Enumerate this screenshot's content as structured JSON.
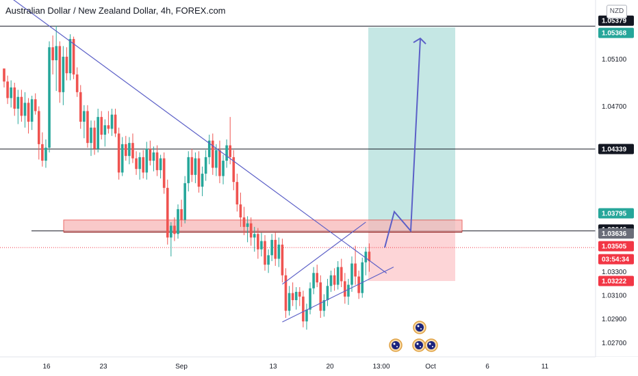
{
  "title": "Australian Dollar / New Zealand Dollar, 4h, FOREX.com",
  "currency_badge": "NZD",
  "colors": {
    "up": "#26a69a",
    "down": "#ef5350",
    "trendline": "#5b5fc7",
    "target_zone": "#b2dfdb",
    "stop_zone": "#fccbcd",
    "resistance_zone": "#f8b8b8",
    "black": "#131722",
    "current_price": "#f23645"
  },
  "chart_data": {
    "type": "candlestick",
    "symbol": "AUDNZD",
    "timeframe": "4h",
    "ylim": [
      1.0258,
      1.056
    ],
    "x_ticks": [
      "16",
      "23",
      "Sep",
      "13",
      "20",
      "13:00",
      "Oct",
      "6",
      "11"
    ],
    "y_ticks": [
      "1.05100",
      "1.04700",
      "1.03300",
      "1.03100",
      "1.02900",
      "1.02700"
    ],
    "price_tags": [
      {
        "label": "1.05379",
        "value": 1.05379,
        "style": "black"
      },
      {
        "label": "1.05368",
        "value": 1.05368,
        "style": "green"
      },
      {
        "label": "1.04339",
        "value": 1.04339,
        "style": "black"
      },
      {
        "label": "1.03795",
        "value": 1.03795,
        "style": "green"
      },
      {
        "label": "1.03646",
        "value": 1.03646,
        "style": "black"
      },
      {
        "label": "1.03636",
        "value": 1.03636,
        "style": "gray"
      },
      {
        "label": "1.03505",
        "value": 1.03505,
        "style": "red"
      },
      {
        "label": "03:54:34",
        "value": null,
        "style": "red"
      },
      {
        "label": "1.03222",
        "value": 1.03222,
        "style": "red"
      }
    ],
    "horizontal_levels": [
      1.05379,
      1.04339,
      1.03646
    ],
    "resistance_zone": [
      1.03636,
      1.03738
    ],
    "current_price": 1.03505,
    "target_zone": [
      1.03636,
      1.05368
    ],
    "stop_zone": [
      1.03222,
      1.03636
    ],
    "candles": [
      [
        1.0502,
        1.0502,
        1.0486,
        1.0491
      ],
      [
        1.0491,
        1.0496,
        1.0472,
        1.0477
      ],
      [
        1.0477,
        1.0492,
        1.0469,
        1.0486
      ],
      [
        1.0486,
        1.049,
        1.0462,
        1.0468
      ],
      [
        1.0468,
        1.0484,
        1.0455,
        1.0478
      ],
      [
        1.0478,
        1.0484,
        1.0457,
        1.0462
      ],
      [
        1.0462,
        1.0482,
        1.0452,
        1.0473
      ],
      [
        1.0473,
        1.0477,
        1.0447,
        1.0457
      ],
      [
        1.0457,
        1.0479,
        1.045,
        1.0476
      ],
      [
        1.0476,
        1.0481,
        1.0463,
        1.0466
      ],
      [
        1.0466,
        1.047,
        1.0425,
        1.0438
      ],
      [
        1.0438,
        1.0448,
        1.0419,
        1.0424
      ],
      [
        1.0424,
        1.0442,
        1.0418,
        1.0435
      ],
      [
        1.0435,
        1.0525,
        1.0431,
        1.052
      ],
      [
        1.052,
        1.053,
        1.0497,
        1.0509
      ],
      [
        1.0509,
        1.0538,
        1.0483,
        1.0521
      ],
      [
        1.0521,
        1.0525,
        1.0473,
        1.0482
      ],
      [
        1.0482,
        1.0521,
        1.0471,
        1.0512
      ],
      [
        1.0512,
        1.052,
        1.0492,
        1.0498
      ],
      [
        1.0498,
        1.0531,
        1.0492,
        1.0527
      ],
      [
        1.0527,
        1.0529,
        1.0493,
        1.0497
      ],
      [
        1.0497,
        1.0503,
        1.0478,
        1.0482
      ],
      [
        1.0482,
        1.0488,
        1.0451,
        1.0457
      ],
      [
        1.0457,
        1.0471,
        1.0443,
        1.0466
      ],
      [
        1.0466,
        1.0471,
        1.0435,
        1.0439
      ],
      [
        1.0439,
        1.0458,
        1.0428,
        1.0452
      ],
      [
        1.0452,
        1.0458,
        1.0429,
        1.0434
      ],
      [
        1.0434,
        1.0468,
        1.0431,
        1.0461
      ],
      [
        1.0461,
        1.0466,
        1.0442,
        1.0446
      ],
      [
        1.0446,
        1.0459,
        1.0436,
        1.0454
      ],
      [
        1.0454,
        1.0466,
        1.0447,
        1.0451
      ],
      [
        1.0451,
        1.0468,
        1.0445,
        1.0463
      ],
      [
        1.0463,
        1.0468,
        1.0444,
        1.0447
      ],
      [
        1.0447,
        1.0452,
        1.0408,
        1.0414
      ],
      [
        1.0414,
        1.0444,
        1.0411,
        1.0438
      ],
      [
        1.0438,
        1.0445,
        1.0424,
        1.0428
      ],
      [
        1.0428,
        1.0444,
        1.0421,
        1.0439
      ],
      [
        1.0439,
        1.0447,
        1.0422,
        1.0426
      ],
      [
        1.0426,
        1.0432,
        1.0412,
        1.0417
      ],
      [
        1.0417,
        1.0431,
        1.0408,
        1.0427
      ],
      [
        1.0427,
        1.0433,
        1.0409,
        1.0414
      ],
      [
        1.0414,
        1.044,
        1.0408,
        1.0434
      ],
      [
        1.0434,
        1.0441,
        1.042,
        1.0424
      ],
      [
        1.0424,
        1.0436,
        1.0415,
        1.0431
      ],
      [
        1.0431,
        1.0437,
        1.0411,
        1.0416
      ],
      [
        1.0416,
        1.0429,
        1.0409,
        1.0426
      ],
      [
        1.0426,
        1.0431,
        1.0396,
        1.0401
      ],
      [
        1.0401,
        1.0408,
        1.0353,
        1.0359
      ],
      [
        1.0359,
        1.0372,
        1.0343,
        1.0369
      ],
      [
        1.0369,
        1.0376,
        1.0356,
        1.0362
      ],
      [
        1.0362,
        1.0387,
        1.0358,
        1.0383
      ],
      [
        1.0383,
        1.0391,
        1.0368,
        1.0374
      ],
      [
        1.0374,
        1.0411,
        1.0371,
        1.0405
      ],
      [
        1.0405,
        1.0432,
        1.0398,
        1.0427
      ],
      [
        1.0427,
        1.0434,
        1.0406,
        1.0412
      ],
      [
        1.0412,
        1.0431,
        1.0405,
        1.0426
      ],
      [
        1.0426,
        1.0432,
        1.0397,
        1.0402
      ],
      [
        1.0402,
        1.0419,
        1.0394,
        1.0413
      ],
      [
        1.0413,
        1.0433,
        1.0407,
        1.0427
      ],
      [
        1.0427,
        1.0446,
        1.0421,
        1.0441
      ],
      [
        1.0441,
        1.0447,
        1.0412,
        1.0418
      ],
      [
        1.0418,
        1.0438,
        1.0411,
        1.0433
      ],
      [
        1.0433,
        1.0441,
        1.0405,
        1.0411
      ],
      [
        1.0411,
        1.0429,
        1.0404,
        1.0424
      ],
      [
        1.0424,
        1.0442,
        1.0418,
        1.0437
      ],
      [
        1.0437,
        1.0461,
        1.0421,
        1.0427
      ],
      [
        1.0427,
        1.0433,
        1.0399,
        1.0406
      ],
      [
        1.0406,
        1.0413,
        1.0381,
        1.0387
      ],
      [
        1.0387,
        1.0397,
        1.0368,
        1.0376
      ],
      [
        1.0376,
        1.0385,
        1.0361,
        1.0368
      ],
      [
        1.0368,
        1.0377,
        1.0355,
        1.0371
      ],
      [
        1.0371,
        1.0376,
        1.0352,
        1.0359
      ],
      [
        1.0359,
        1.0368,
        1.0347,
        1.0362
      ],
      [
        1.0362,
        1.0367,
        1.0341,
        1.0349
      ],
      [
        1.0349,
        1.0363,
        1.0343,
        1.0356
      ],
      [
        1.0356,
        1.0361,
        1.0331,
        1.0336
      ],
      [
        1.0336,
        1.0349,
        1.0329,
        1.0344
      ],
      [
        1.0344,
        1.0362,
        1.0339,
        1.0357
      ],
      [
        1.0357,
        1.0363,
        1.0335,
        1.0341
      ],
      [
        1.0341,
        1.0359,
        1.0334,
        1.0353
      ],
      [
        1.0353,
        1.0358,
        1.0321,
        1.0327
      ],
      [
        1.0327,
        1.0333,
        1.0291,
        1.0297
      ],
      [
        1.0297,
        1.0318,
        1.0293,
        1.0312
      ],
      [
        1.0312,
        1.0321,
        1.0301,
        1.0306
      ],
      [
        1.0306,
        1.0317,
        1.0298,
        1.0313
      ],
      [
        1.0313,
        1.0317,
        1.0301,
        1.0309
      ],
      [
        1.0309,
        1.0314,
        1.0283,
        1.0288
      ],
      [
        1.0288,
        1.0303,
        1.0281,
        1.0298
      ],
      [
        1.0298,
        1.0321,
        1.0294,
        1.0316
      ],
      [
        1.0316,
        1.0334,
        1.0311,
        1.0329
      ],
      [
        1.0329,
        1.0336,
        1.0317,
        1.0321
      ],
      [
        1.0321,
        1.0327,
        1.0291,
        1.0297
      ],
      [
        1.0297,
        1.0311,
        1.0292,
        1.0306
      ],
      [
        1.0306,
        1.0324,
        1.0301,
        1.0318
      ],
      [
        1.0318,
        1.0331,
        1.0313,
        1.0327
      ],
      [
        1.0327,
        1.0333,
        1.0314,
        1.0319
      ],
      [
        1.0319,
        1.0339,
        1.0315,
        1.0334
      ],
      [
        1.0334,
        1.0341,
        1.0317,
        1.0322
      ],
      [
        1.0322,
        1.0329,
        1.0303,
        1.0309
      ],
      [
        1.0309,
        1.0324,
        1.0302,
        1.0319
      ],
      [
        1.0319,
        1.0343,
        1.0313,
        1.0337
      ],
      [
        1.0337,
        1.0352,
        1.0319,
        1.0326
      ],
      [
        1.0326,
        1.0331,
        1.0307,
        1.0312
      ],
      [
        1.0312,
        1.0342,
        1.0308,
        1.0338
      ],
      [
        1.0338,
        1.0351,
        1.0327,
        1.0347
      ],
      [
        1.0347,
        1.0354,
        1.033,
        1.0339
      ]
    ],
    "trendlines": [
      {
        "from": [
          0,
          1.0566
        ],
        "to": [
          110,
          1.03288
        ]
      },
      {
        "from": [
          80,
          1.02875
        ],
        "to": [
          112,
          1.0334
        ]
      },
      {
        "from": [
          80,
          1.03195
        ],
        "to": [
          104,
          1.0372
        ]
      }
    ],
    "projection_path": [
      1.03505,
      1.03808,
      1.03646,
      1.05275
    ],
    "events": [
      {
        "name": "australia-flag-icon"
      },
      {
        "name": "australia-flag-icon"
      },
      {
        "name": "australia-flag-icon"
      },
      {
        "name": "australia-flag-icon"
      },
      {
        "name": "australia-flag-icon"
      }
    ]
  }
}
